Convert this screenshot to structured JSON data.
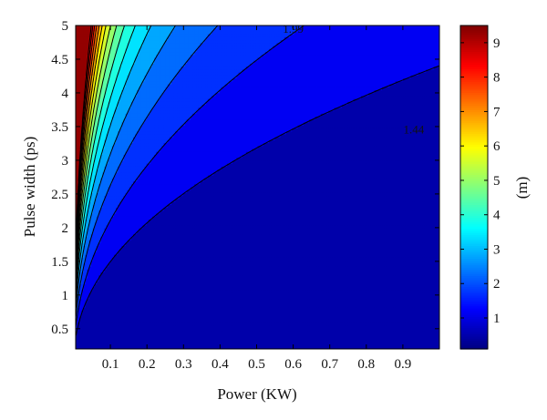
{
  "chart_data": {
    "type": "contour",
    "title": "",
    "xlabel": "Power (KW)",
    "ylabel": "Pulse width (ps)",
    "colorbar_label": "(m)",
    "colormap": "jet",
    "xlim": [
      0.005,
      1.0
    ],
    "ylim": [
      0.2,
      5.0
    ],
    "x_ticks": [
      0.1,
      0.2,
      0.3,
      0.4,
      0.5,
      0.6,
      0.7,
      0.8,
      0.9
    ],
    "x_tick_labels": [
      "0.1",
      "0.2",
      "0.3",
      "0.4",
      "0.5",
      "0.6",
      "0.7",
      "0.8",
      "0.9"
    ],
    "y_ticks": [
      0.5,
      1,
      1.5,
      2,
      2.5,
      3,
      3.5,
      4,
      4.5,
      5
    ],
    "y_tick_labels": [
      "0.5",
      "1",
      "1.5",
      "2",
      "2.5",
      "3",
      "3.5",
      "4",
      "4.5",
      "5"
    ],
    "colorbar_range": [
      0.1,
      9.5
    ],
    "colorbar_ticks": [
      1,
      2,
      3,
      4,
      5,
      6,
      7,
      8,
      9
    ],
    "colorbar_tick_labels": [
      "1",
      "2",
      "3",
      "4",
      "5",
      "6",
      "7",
      "8",
      "9"
    ],
    "contour_levels": [
      0.89,
      1.44,
      1.99,
      2.54,
      3.09,
      3.64,
      4.19,
      4.74,
      5.29,
      5.84,
      6.39,
      6.94,
      7.49,
      8.04,
      8.59,
      9.14
    ],
    "contour_labels": [
      {
        "text": "1.99",
        "x": 0.6,
        "y": 4.89
      },
      {
        "text": "1.44",
        "x": 0.93,
        "y": 3.4
      }
    ],
    "grid": false
  }
}
